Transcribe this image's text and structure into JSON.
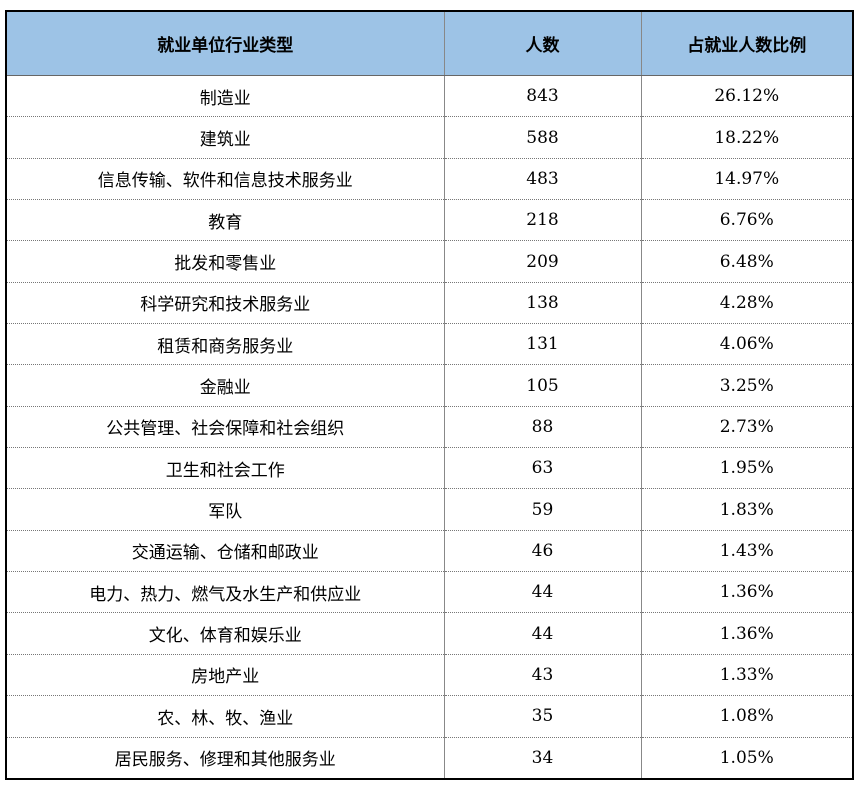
{
  "table": {
    "header": [
      "就业单位行业类型",
      "人数",
      "占就业人数比例"
    ],
    "rows": [
      [
        "制造业",
        "843",
        "26.12%"
      ],
      [
        "建筑业",
        "588",
        "18.22%"
      ],
      [
        "信息传输、软件和信息技术服务业",
        "483",
        "14.97%"
      ],
      [
        "教育",
        "218",
        "6.76%"
      ],
      [
        "批发和零售业",
        "209",
        "6.48%"
      ],
      [
        "科学研究和技术服务业",
        "138",
        "4.28%"
      ],
      [
        "租赁和商务服务业",
        "131",
        "4.06%"
      ],
      [
        "金融业",
        "105",
        "3.25%"
      ],
      [
        "公共管理、社会保障和社会组织",
        "88",
        "2.73%"
      ],
      [
        "卫生和社会工作",
        "63",
        "1.95%"
      ],
      [
        "军队",
        "59",
        "1.83%"
      ],
      [
        "交通运输、仓储和邮政业",
        "46",
        "1.43%"
      ],
      [
        "电力、热力、燃气及水生产和供应业",
        "44",
        "1.36%"
      ],
      [
        "文化、体育和娱乐业",
        "44",
        "1.36%"
      ],
      [
        "房地产业",
        "43",
        "1.33%"
      ],
      [
        "农、林、牧、渔业",
        "35",
        "1.08%"
      ],
      [
        "居民服务、修理和其他服务业",
        "34",
        "1.05%"
      ]
    ]
  }
}
